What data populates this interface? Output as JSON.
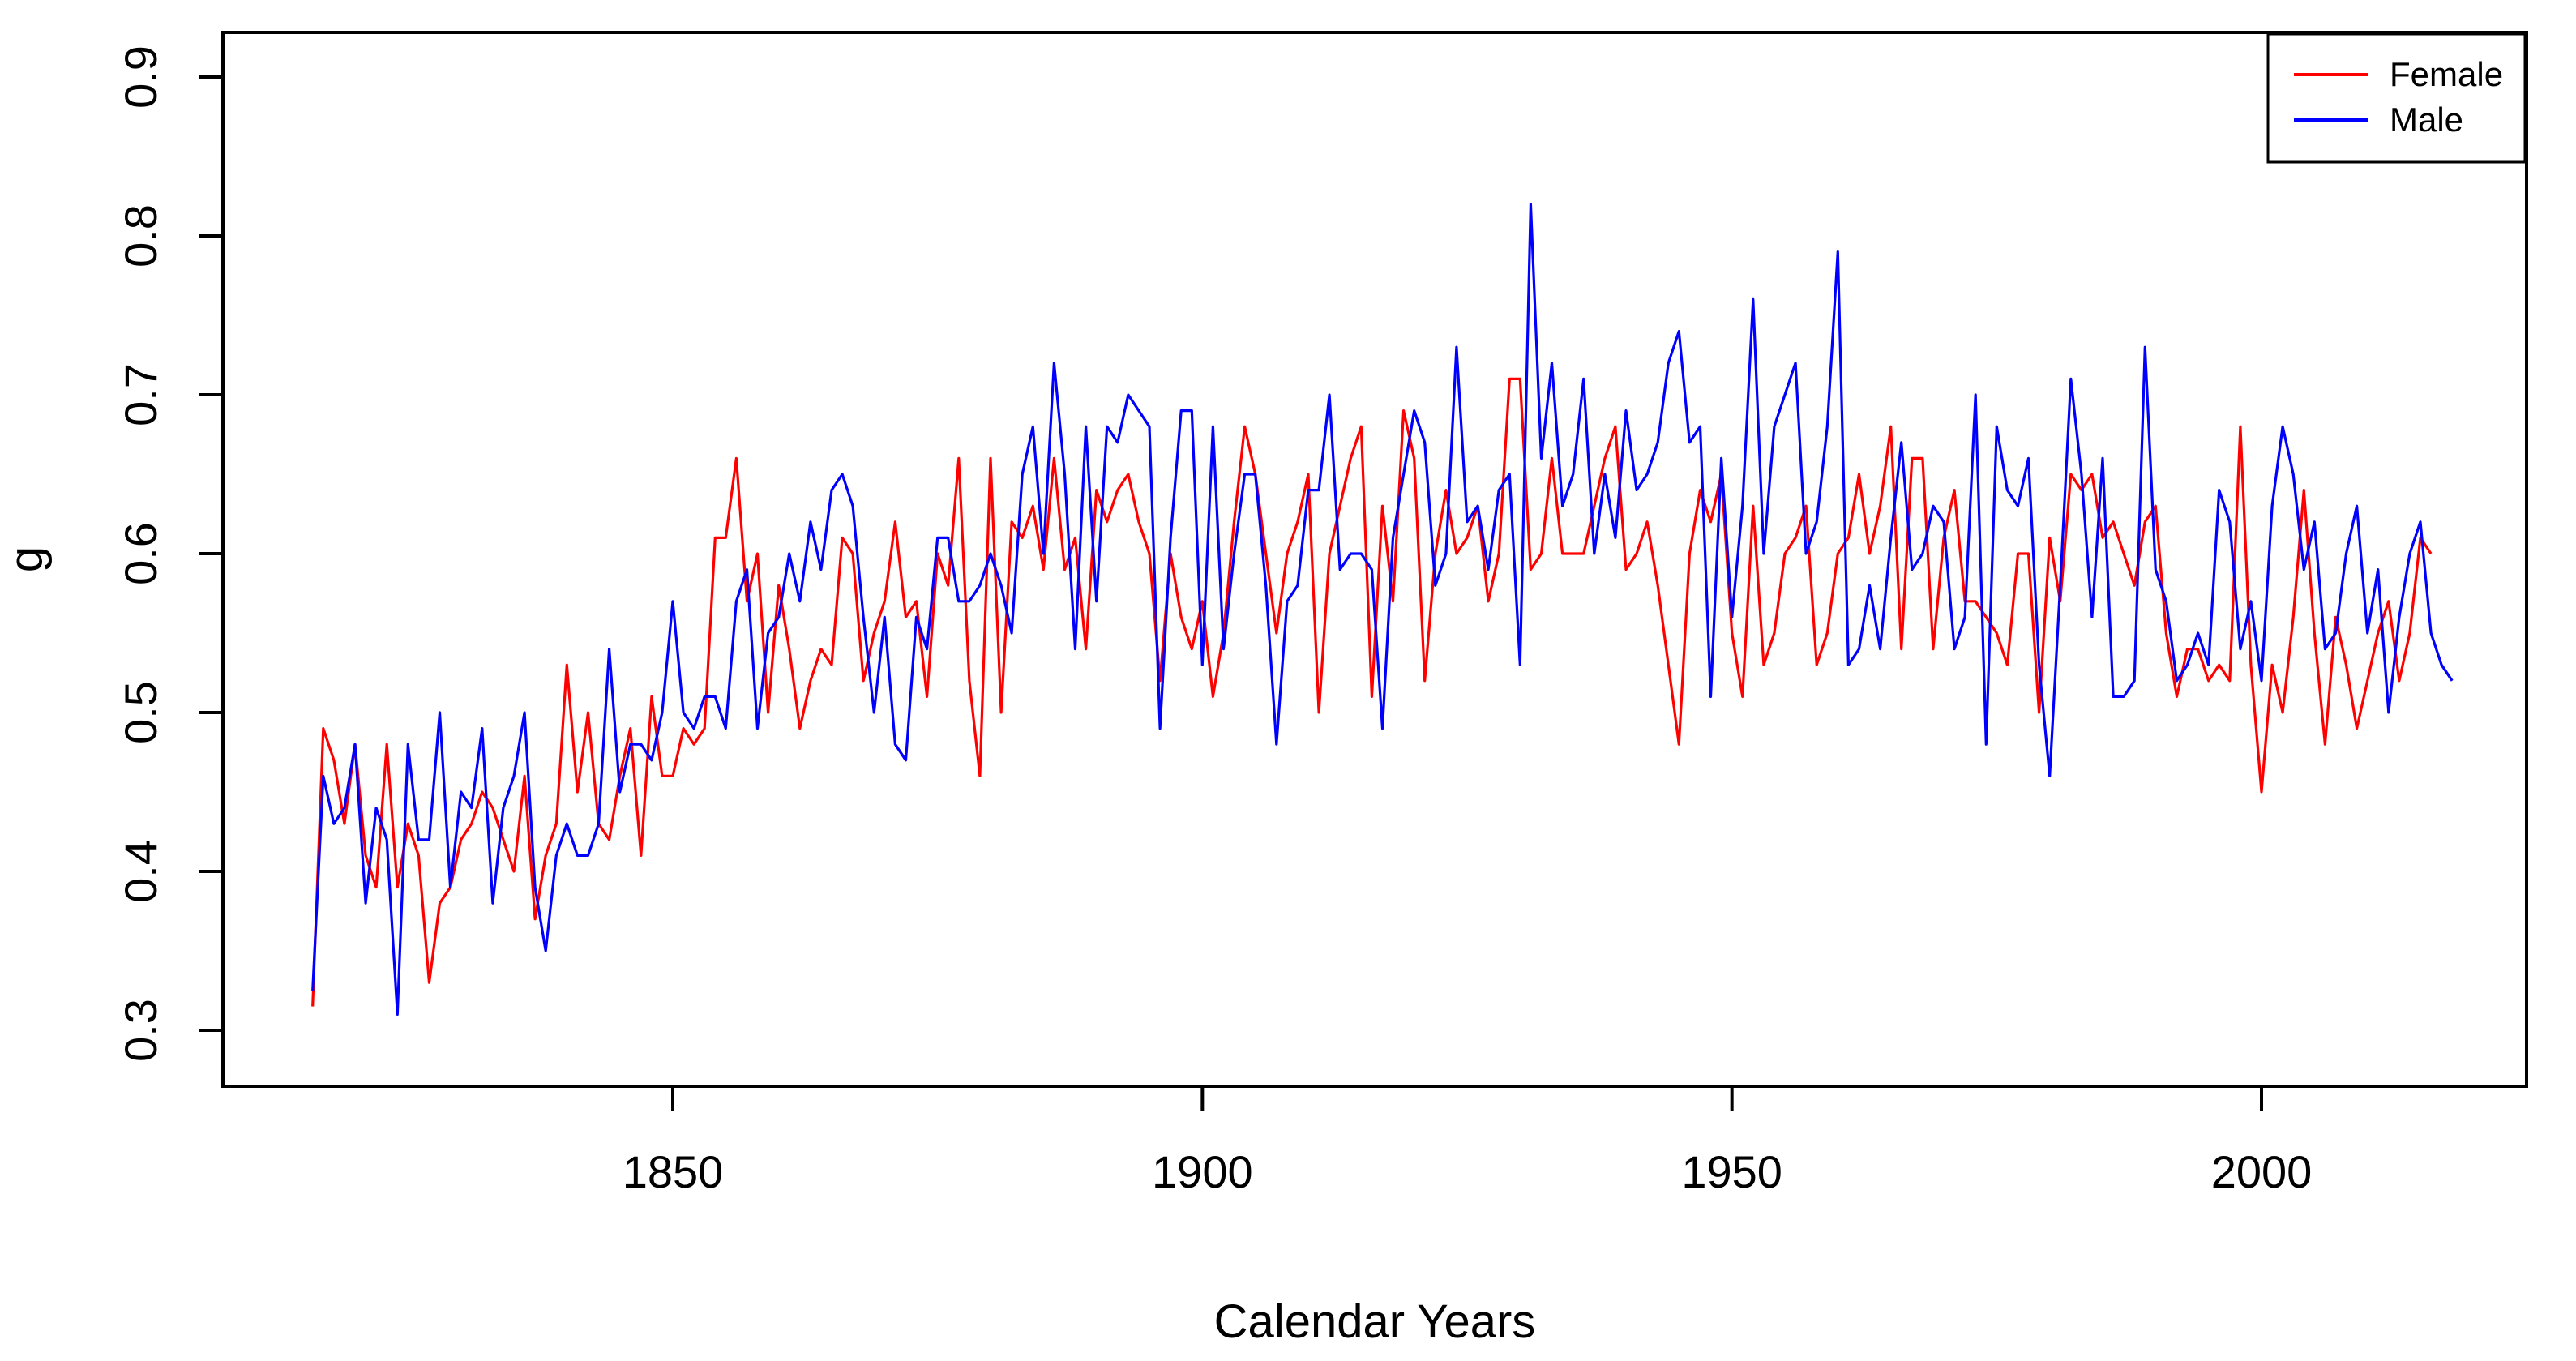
{
  "chart_data": {
    "type": "line",
    "title": "",
    "xlabel": "Calendar Years",
    "ylabel": "g",
    "xlim": [
      1815,
      2019
    ],
    "ylim": [
      0.3,
      0.9
    ],
    "x_ticks": [
      1850,
      1900,
      1950,
      2000
    ],
    "x_tick_labels": [
      "1850",
      "1900",
      "1950",
      "2000"
    ],
    "y_ticks": [
      0.3,
      0.4,
      0.5,
      0.6,
      0.7,
      0.8,
      0.9
    ],
    "y_tick_labels": [
      "0.3",
      "0.4",
      "0.5",
      "0.6",
      "0.7",
      "0.8",
      "0.9"
    ],
    "grid": false,
    "legend_position": "top-right",
    "x_start": 1816,
    "series": [
      {
        "name": "Female",
        "color": "#ff0000",
        "values": [
          0.315,
          0.49,
          0.47,
          0.43,
          0.48,
          0.41,
          0.39,
          0.48,
          0.39,
          0.43,
          0.41,
          0.33,
          0.38,
          0.39,
          0.42,
          0.43,
          0.45,
          0.44,
          0.42,
          0.4,
          0.46,
          0.37,
          0.41,
          0.43,
          0.53,
          0.45,
          0.5,
          0.43,
          0.42,
          0.46,
          0.49,
          0.41,
          0.51,
          0.46,
          0.46,
          0.49,
          0.48,
          0.49,
          0.61,
          0.61,
          0.66,
          0.57,
          0.6,
          0.5,
          0.58,
          0.54,
          0.49,
          0.52,
          0.54,
          0.53,
          0.61,
          0.6,
          0.52,
          0.55,
          0.57,
          0.62,
          0.56,
          0.57,
          0.51,
          0.6,
          0.58,
          0.66,
          0.52,
          0.46,
          0.66,
          0.5,
          0.62,
          0.61,
          0.63,
          0.59,
          0.66,
          0.59,
          0.61,
          0.54,
          0.64,
          0.62,
          0.64,
          0.65,
          0.62,
          0.6,
          0.52,
          0.6,
          0.56,
          0.54,
          0.57,
          0.51,
          0.55,
          0.62,
          0.68,
          0.65,
          0.6,
          0.55,
          0.6,
          0.62,
          0.65,
          0.5,
          0.6,
          0.63,
          0.66,
          0.68,
          0.51,
          0.63,
          0.57,
          0.69,
          0.66,
          0.52,
          0.6,
          0.64,
          0.6,
          0.61,
          0.63,
          0.57,
          0.6,
          0.71,
          0.71,
          0.59,
          0.6,
          0.66,
          0.6,
          0.6,
          0.6,
          0.63,
          0.66,
          0.68,
          0.59,
          0.6,
          0.62,
          0.58,
          0.53,
          0.48,
          0.6,
          0.64,
          0.62,
          0.65,
          0.55,
          0.51,
          0.63,
          0.53,
          0.55,
          0.6,
          0.61,
          0.63,
          0.53,
          0.55,
          0.6,
          0.61,
          0.65,
          0.6,
          0.63,
          0.68,
          0.54,
          0.66,
          0.66,
          0.54,
          0.61,
          0.64,
          0.57,
          0.57,
          0.56,
          0.55,
          0.53,
          0.6,
          0.6,
          0.5,
          0.61,
          0.57,
          0.65,
          0.64,
          0.65,
          0.61,
          0.62,
          0.6,
          0.58,
          0.62,
          0.63,
          0.55,
          0.51,
          0.54,
          0.54,
          0.52,
          0.53,
          0.52,
          0.68,
          0.53,
          0.45,
          0.53,
          0.5,
          0.56,
          0.64,
          0.55,
          0.48,
          0.56,
          0.53,
          0.49,
          0.52,
          0.55,
          0.57,
          0.52,
          0.55,
          0.61,
          0.6
        ]
      },
      {
        "name": "Male",
        "color": "#0000ff",
        "values": [
          0.325,
          0.46,
          0.43,
          0.44,
          0.48,
          0.38,
          0.44,
          0.42,
          0.31,
          0.48,
          0.42,
          0.42,
          0.5,
          0.39,
          0.45,
          0.44,
          0.49,
          0.38,
          0.44,
          0.46,
          0.5,
          0.39,
          0.35,
          0.41,
          0.43,
          0.41,
          0.41,
          0.43,
          0.54,
          0.45,
          0.48,
          0.48,
          0.47,
          0.5,
          0.57,
          0.5,
          0.49,
          0.51,
          0.51,
          0.49,
          0.57,
          0.59,
          0.49,
          0.55,
          0.56,
          0.6,
          0.57,
          0.62,
          0.59,
          0.64,
          0.65,
          0.63,
          0.56,
          0.5,
          0.56,
          0.48,
          0.47,
          0.56,
          0.54,
          0.61,
          0.61,
          0.57,
          0.57,
          0.58,
          0.6,
          0.58,
          0.55,
          0.65,
          0.68,
          0.6,
          0.72,
          0.65,
          0.54,
          0.68,
          0.57,
          0.68,
          0.67,
          0.7,
          0.69,
          0.68,
          0.49,
          0.61,
          0.69,
          0.69,
          0.53,
          0.68,
          0.54,
          0.6,
          0.65,
          0.65,
          0.58,
          0.48,
          0.57,
          0.58,
          0.64,
          0.64,
          0.7,
          0.59,
          0.6,
          0.6,
          0.59,
          0.49,
          0.61,
          0.65,
          0.69,
          0.67,
          0.58,
          0.6,
          0.73,
          0.62,
          0.63,
          0.59,
          0.64,
          0.65,
          0.53,
          0.82,
          0.66,
          0.72,
          0.63,
          0.65,
          0.71,
          0.6,
          0.65,
          0.61,
          0.69,
          0.64,
          0.65,
          0.67,
          0.72,
          0.74,
          0.67,
          0.68,
          0.51,
          0.66,
          0.56,
          0.63,
          0.76,
          0.6,
          0.68,
          0.7,
          0.72,
          0.6,
          0.62,
          0.68,
          0.79,
          0.53,
          0.54,
          0.58,
          0.54,
          0.61,
          0.67,
          0.59,
          0.6,
          0.63,
          0.62,
          0.54,
          0.56,
          0.7,
          0.48,
          0.68,
          0.64,
          0.63,
          0.66,
          0.53,
          0.46,
          0.58,
          0.71,
          0.65,
          0.56,
          0.66,
          0.51,
          0.51,
          0.52,
          0.73,
          0.59,
          0.57,
          0.52,
          0.53,
          0.55,
          0.53,
          0.64,
          0.62,
          0.54,
          0.57,
          0.52,
          0.63,
          0.68,
          0.65,
          0.59,
          0.62,
          0.54,
          0.55,
          0.6,
          0.63,
          0.55,
          0.59,
          0.5,
          0.56,
          0.6,
          0.62,
          0.55,
          0.53,
          0.52
        ]
      }
    ]
  }
}
